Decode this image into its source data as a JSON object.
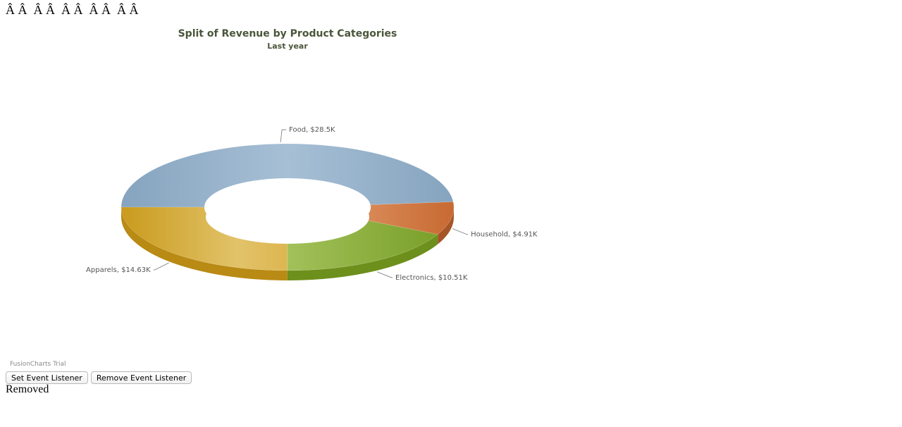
{
  "garbled_text": "Â Â  Â Â  Â Â  Â Â  Â Â",
  "chart_data": {
    "type": "doughnut",
    "title": "Split of Revenue by Product Categories",
    "subtitle": "Last year",
    "slices": [
      {
        "label": "Food",
        "value": 28.5,
        "display": "Food, $28.5K",
        "color": "#8fadc6"
      },
      {
        "label": "Household",
        "value": 4.91,
        "display": "Household, $4.91K",
        "color": "#d37b45"
      },
      {
        "label": "Electronics",
        "value": 10.51,
        "display": "Electronics, $10.51K",
        "color": "#8db43a"
      },
      {
        "label": "Apparels",
        "value": 14.63,
        "display": "Apparels, $14.63K",
        "color": "#d7ae3e"
      }
    ]
  },
  "watermark": "FusionCharts Trial",
  "buttons": {
    "set_label": "Set Event Listener",
    "remove_label": "Remove Event Listener"
  },
  "status_text": "Removed"
}
